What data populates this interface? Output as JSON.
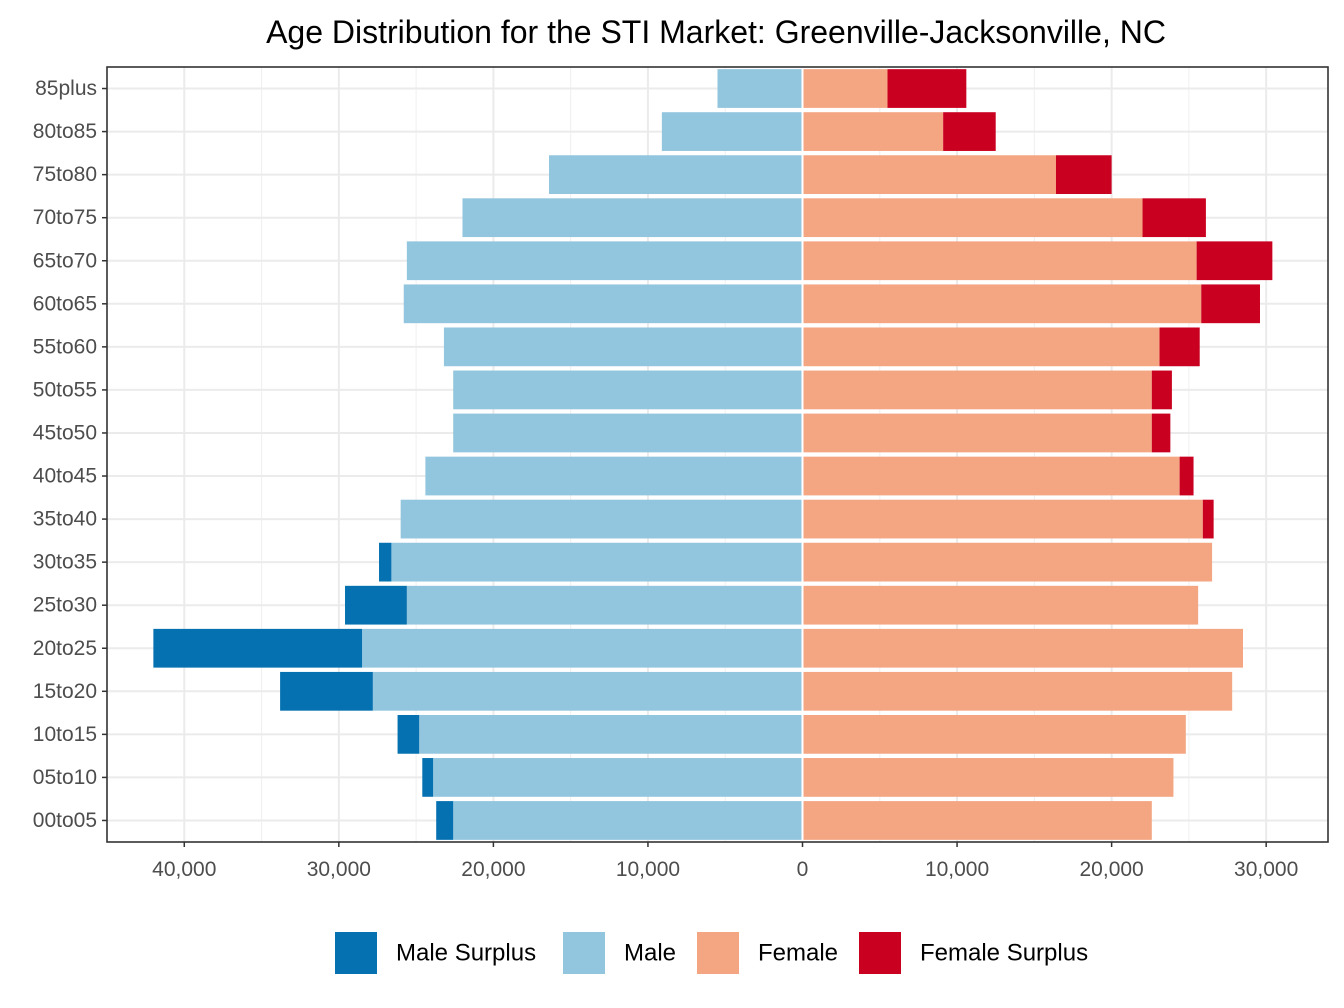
{
  "chart_data": {
    "type": "bar",
    "orientation": "horizontal",
    "layout": "population-pyramid",
    "title": "Age Distribution for the STI Market: Greenville-Jacksonville, NC",
    "xlabel": "",
    "ylabel": "",
    "xlim": [
      -45000,
      34000
    ],
    "x_ticks": [
      -40000,
      -30000,
      -20000,
      -10000,
      0,
      10000,
      20000,
      30000
    ],
    "x_tick_labels": [
      "40,000",
      "30,000",
      "20,000",
      "10,000",
      "0",
      "10,000",
      "20,000",
      "30,000"
    ],
    "categories": [
      "00to05",
      "05to10",
      "10to15",
      "15to20",
      "20to25",
      "25to30",
      "30to35",
      "35to40",
      "40to45",
      "45to50",
      "50to55",
      "55to60",
      "60to65",
      "65to70",
      "70to75",
      "75to80",
      "80to85",
      "85plus"
    ],
    "series": [
      {
        "name": "Male Surplus",
        "color": "#0571b0",
        "side": "left",
        "stacked_outside": "Male",
        "values": [
          1100,
          700,
          1400,
          6000,
          13500,
          4000,
          800,
          0,
          0,
          0,
          0,
          0,
          0,
          0,
          0,
          0,
          0,
          0
        ]
      },
      {
        "name": "Male",
        "color": "#92c5de",
        "side": "left",
        "values": [
          22600,
          23900,
          24800,
          27800,
          28500,
          25600,
          26600,
          26000,
          24400,
          22600,
          22600,
          23200,
          25800,
          25600,
          22000,
          16400,
          9100,
          5500
        ]
      },
      {
        "name": "Female",
        "color": "#f4a582",
        "side": "right",
        "values": [
          22600,
          24000,
          24800,
          27800,
          28500,
          25600,
          26500,
          25900,
          24400,
          22600,
          22600,
          23100,
          25800,
          25500,
          22000,
          16400,
          9100,
          5500
        ]
      },
      {
        "name": "Female Surplus",
        "color": "#ca0020",
        "side": "right",
        "stacked_outside": "Female",
        "values": [
          0,
          0,
          0,
          0,
          0,
          0,
          0,
          700,
          900,
          1200,
          1300,
          2600,
          3800,
          4900,
          4100,
          3600,
          3400,
          5100
        ]
      }
    ],
    "legend": {
      "position": "bottom",
      "items": [
        "Male Surplus",
        "Male",
        "Female",
        "Female Surplus"
      ]
    },
    "grid": true,
    "panel_border": true
  }
}
